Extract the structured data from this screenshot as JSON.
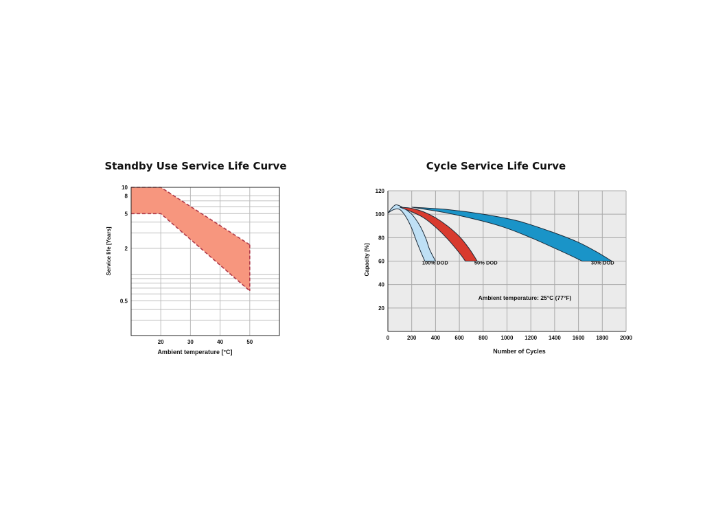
{
  "charts": {
    "standby": {
      "title": "Standby Use Service Life Curve"
    },
    "cycle": {
      "title": "Cycle Service Life Curve"
    }
  },
  "chart_data": [
    {
      "type": "area",
      "title": "Standby Use Service Life Curve",
      "xlabel": "Ambient temperature [°C]",
      "ylabel": "Service life [Years]",
      "y_scale": "log",
      "xlim": [
        10,
        60
      ],
      "ylim": [
        0.2,
        10
      ],
      "x_ticks": [
        20,
        30,
        40,
        50
      ],
      "y_tick_labels": [
        "10",
        "8",
        "5",
        "2",
        "0.5"
      ],
      "y_ticks": [
        10,
        8,
        5,
        2,
        0.5
      ],
      "y_minor_gridlines": [
        10,
        8,
        7,
        6,
        5,
        4,
        3,
        2,
        1,
        0.9,
        0.8,
        0.7,
        0.6,
        0.5,
        0.4,
        0.3,
        0.2
      ],
      "grid": true,
      "band_color": "#F7967E",
      "edge_color": "#B03A4A",
      "series": [
        {
          "x": [
            10,
            20,
            50
          ],
          "values": [
            10,
            10,
            2.2
          ]
        },
        {
          "x": [
            10,
            20,
            50
          ],
          "values": [
            5,
            5,
            0.65
          ]
        }
      ]
    },
    {
      "type": "area",
      "title": "Cycle Service Life Curve",
      "xlabel": "Number of Cycles",
      "ylabel": "Capacity [%]",
      "xlim": [
        0,
        2000
      ],
      "ylim": [
        0,
        120
      ],
      "x_ticks": [
        0,
        200,
        400,
        600,
        800,
        1000,
        1200,
        1400,
        1600,
        1800,
        2000
      ],
      "y_ticks": [
        20,
        40,
        60,
        80,
        100,
        120
      ],
      "grid": true,
      "background": "#EBEBEB",
      "annotation": "Ambient temperature: 25°C (77°F)",
      "series": [
        {
          "name": "100% DOD",
          "color": "#BFE0F5",
          "upper": {
            "x": [
              0,
              40,
              70,
              120,
              200,
              270,
              320,
              350,
              400
            ],
            "y": [
              101,
              106,
              108,
              106,
              100,
              90,
              79,
              70,
              60
            ]
          },
          "lower": {
            "x": [
              0,
              50,
              100,
              150,
              200,
              240,
              280,
              310
            ],
            "y": [
              101,
              104,
              104,
              98,
              88,
              77,
              67,
              60
            ]
          }
        },
        {
          "name": "50% DOD",
          "color": "#D83A2E",
          "upper": {
            "x": [
              100,
              200,
              300,
              400,
              500,
              600,
              680,
              750
            ],
            "y": [
              106,
              105,
              102,
              97,
              90,
              81,
              71,
              60
            ]
          },
          "lower": {
            "x": [
              100,
              200,
              300,
              400,
              500,
              600,
              650
            ],
            "y": [
              106,
              102,
              97,
              89,
              79,
              67,
              60
            ]
          }
        },
        {
          "name": "30% DOD",
          "color": "#1A94C8",
          "upper": {
            "x": [
              200,
              500,
              800,
              1100,
              1400,
              1600,
              1750,
              1880
            ],
            "y": [
              106,
              104,
              100,
              94,
              84,
              76,
              68,
              60
            ]
          },
          "lower": {
            "x": [
              200,
              500,
              800,
              1000,
              1200,
              1400,
              1550,
              1630
            ],
            "y": [
              106,
              101,
              94,
              88,
              80,
              71,
              64,
              60
            ]
          }
        }
      ]
    }
  ]
}
